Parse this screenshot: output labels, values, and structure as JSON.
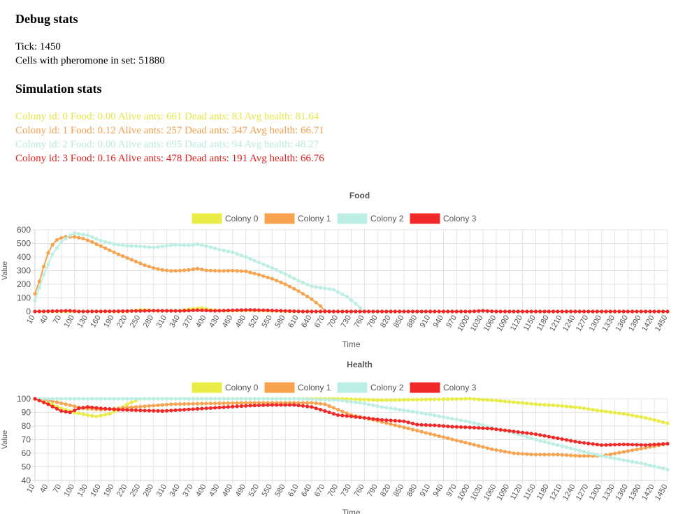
{
  "debug": {
    "heading": "Debug stats",
    "tick_text": "Tick: 1450",
    "pheromone_text": "Cells with pheromone in set: 51880"
  },
  "simulation": {
    "heading": "Simulation stats",
    "colonies": [
      {
        "text": "Colony id: 0 Food: 0.00 Alive ants: 661 Dead ants: 83 Avg health: 81.64",
        "color": "#e6e645"
      },
      {
        "text": "Colony id: 1 Food: 0.12 Alive ants: 257 Dead ants: 347 Avg health: 66.71",
        "color": "#f0a050"
      },
      {
        "text": "Colony id: 2 Food: 0.00 Alive ants: 695 Dead ants: 94 Avg health: 48.27",
        "color": "#bde8e0"
      },
      {
        "text": "Colony id: 3 Food: 0.16 Alive ants: 478 Dead ants: 191 Avg health: 66.76",
        "color": "#e02020"
      }
    ]
  },
  "chart_data": [
    {
      "type": "line",
      "title": "Food",
      "xlabel": "Time",
      "ylabel": "Value",
      "ylim": [
        0,
        600
      ],
      "yticks": [
        0,
        100,
        200,
        300,
        400,
        500,
        600
      ],
      "x_start": 10,
      "x_end": 1450,
      "x_step": 30,
      "series": [
        {
          "name": "Colony 0",
          "color": "#e8ec45",
          "points": [
            [
              10,
              0
            ],
            [
              220,
              0
            ],
            [
              250,
              12
            ],
            [
              300,
              4
            ],
            [
              340,
              6
            ],
            [
              370,
              20
            ],
            [
              390,
              25
            ],
            [
              410,
              12
            ],
            [
              440,
              5
            ],
            [
              500,
              8
            ],
            [
              560,
              4
            ],
            [
              600,
              0
            ],
            [
              1450,
              0
            ]
          ]
        },
        {
          "name": "Colony 1",
          "color": "#f7a24f",
          "points": [
            [
              10,
              130
            ],
            [
              20,
              220
            ],
            [
              30,
              330
            ],
            [
              40,
              430
            ],
            [
              50,
              490
            ],
            [
              60,
              525
            ],
            [
              70,
              540
            ],
            [
              80,
              548
            ],
            [
              100,
              548
            ],
            [
              120,
              535
            ],
            [
              140,
              510
            ],
            [
              160,
              480
            ],
            [
              180,
              450
            ],
            [
              200,
              420
            ],
            [
              230,
              380
            ],
            [
              260,
              340
            ],
            [
              280,
              320
            ],
            [
              300,
              305
            ],
            [
              320,
              298
            ],
            [
              340,
              300
            ],
            [
              360,
              305
            ],
            [
              380,
              315
            ],
            [
              400,
              302
            ],
            [
              430,
              298
            ],
            [
              460,
              300
            ],
            [
              490,
              295
            ],
            [
              520,
              270
            ],
            [
              550,
              240
            ],
            [
              580,
              200
            ],
            [
              610,
              150
            ],
            [
              640,
              90
            ],
            [
              660,
              40
            ],
            [
              670,
              5
            ],
            [
              680,
              0
            ],
            [
              1450,
              0
            ]
          ]
        },
        {
          "name": "Colony 2",
          "color": "#bdeee3",
          "points": [
            [
              10,
              80
            ],
            [
              30,
              270
            ],
            [
              50,
              420
            ],
            [
              70,
              510
            ],
            [
              90,
              560
            ],
            [
              100,
              575
            ],
            [
              130,
              560
            ],
            [
              160,
              520
            ],
            [
              190,
              495
            ],
            [
              220,
              482
            ],
            [
              250,
              478
            ],
            [
              280,
              470
            ],
            [
              300,
              478
            ],
            [
              330,
              490
            ],
            [
              360,
              485
            ],
            [
              380,
              495
            ],
            [
              400,
              480
            ],
            [
              430,
              455
            ],
            [
              460,
              435
            ],
            [
              490,
              400
            ],
            [
              520,
              360
            ],
            [
              550,
              320
            ],
            [
              580,
              275
            ],
            [
              610,
              225
            ],
            [
              640,
              185
            ],
            [
              660,
              175
            ],
            [
              690,
              160
            ],
            [
              720,
              110
            ],
            [
              750,
              30
            ],
            [
              760,
              0
            ],
            [
              1450,
              0
            ]
          ]
        },
        {
          "name": "Colony 3",
          "color": "#f02828",
          "points": [
            [
              10,
              0
            ],
            [
              90,
              5
            ],
            [
              110,
              0
            ],
            [
              200,
              2
            ],
            [
              280,
              6
            ],
            [
              340,
              4
            ],
            [
              380,
              10
            ],
            [
              420,
              5
            ],
            [
              500,
              12
            ],
            [
              540,
              8
            ],
            [
              580,
              4
            ],
            [
              620,
              0
            ],
            [
              1000,
              0
            ],
            [
              1030,
              5
            ],
            [
              1060,
              0
            ],
            [
              1450,
              0
            ]
          ]
        }
      ]
    },
    {
      "type": "line",
      "title": "Health",
      "xlabel": "Time",
      "ylabel": "Value",
      "ylim": [
        40,
        100
      ],
      "yticks": [
        40,
        50,
        60,
        70,
        80,
        90,
        100
      ],
      "x_start": 10,
      "x_end": 1450,
      "x_step": 30,
      "series": [
        {
          "name": "Colony 0",
          "color": "#e8ec45",
          "points": [
            [
              10,
              100
            ],
            [
              40,
              97
            ],
            [
              70,
              93
            ],
            [
              100,
              90
            ],
            [
              130,
              88
            ],
            [
              150,
              87
            ],
            [
              180,
              89
            ],
            [
              200,
              92
            ],
            [
              220,
              96
            ],
            [
              250,
              100
            ],
            [
              700,
              100
            ],
            [
              800,
              99
            ],
            [
              900,
              99.5
            ],
            [
              1000,
              100
            ],
            [
              1050,
              99
            ],
            [
              1100,
              97.5
            ],
            [
              1150,
              96
            ],
            [
              1200,
              95
            ],
            [
              1250,
              93.5
            ],
            [
              1300,
              91
            ],
            [
              1350,
              89
            ],
            [
              1400,
              86
            ],
            [
              1450,
              82
            ]
          ]
        },
        {
          "name": "Colony 1",
          "color": "#f7a24f",
          "points": [
            [
              10,
              100
            ],
            [
              40,
              99
            ],
            [
              80,
              96
            ],
            [
              120,
              93
            ],
            [
              160,
              92
            ],
            [
              200,
              93
            ],
            [
              240,
              94
            ],
            [
              280,
              95
            ],
            [
              320,
              96
            ],
            [
              400,
              96.5
            ],
            [
              500,
              97
            ],
            [
              600,
              97
            ],
            [
              640,
              97
            ],
            [
              670,
              96
            ],
            [
              700,
              92
            ],
            [
              730,
              88
            ],
            [
              760,
              86
            ],
            [
              800,
              83
            ],
            [
              850,
              79
            ],
            [
              900,
              75
            ],
            [
              950,
              71
            ],
            [
              1000,
              67
            ],
            [
              1050,
              63
            ],
            [
              1100,
              60
            ],
            [
              1150,
              59
            ],
            [
              1200,
              59
            ],
            [
              1250,
              58
            ],
            [
              1300,
              58
            ],
            [
              1350,
              61
            ],
            [
              1400,
              64
            ],
            [
              1450,
              67
            ]
          ]
        },
        {
          "name": "Colony 2",
          "color": "#bdeee3",
          "points": [
            [
              10,
              100
            ],
            [
              200,
              100
            ],
            [
              400,
              100
            ],
            [
              600,
              100
            ],
            [
              700,
              99
            ],
            [
              750,
              97
            ],
            [
              800,
              94
            ],
            [
              900,
              89
            ],
            [
              1000,
              83
            ],
            [
              1050,
              79
            ],
            [
              1100,
              75
            ],
            [
              1150,
              70
            ],
            [
              1200,
              66
            ],
            [
              1250,
              62
            ],
            [
              1300,
              58
            ],
            [
              1350,
              55
            ],
            [
              1400,
              52
            ],
            [
              1450,
              48
            ]
          ]
        },
        {
          "name": "Colony 3",
          "color": "#f02828",
          "points": [
            [
              10,
              100
            ],
            [
              40,
              96
            ],
            [
              70,
              91
            ],
            [
              90,
              90
            ],
            [
              110,
              93
            ],
            [
              130,
              94
            ],
            [
              160,
              93
            ],
            [
              200,
              92
            ],
            [
              250,
              91.5
            ],
            [
              300,
              91
            ],
            [
              350,
              92
            ],
            [
              400,
              93
            ],
            [
              450,
              94
            ],
            [
              500,
              95
            ],
            [
              550,
              95.5
            ],
            [
              600,
              95.5
            ],
            [
              640,
              94
            ],
            [
              670,
              91
            ],
            [
              700,
              88
            ],
            [
              730,
              87
            ],
            [
              760,
              86
            ],
            [
              800,
              84.5
            ],
            [
              850,
              83.5
            ],
            [
              880,
              81
            ],
            [
              920,
              80.5
            ],
            [
              960,
              79.5
            ],
            [
              1000,
              79
            ],
            [
              1050,
              78
            ],
            [
              1100,
              76
            ],
            [
              1150,
              74
            ],
            [
              1200,
              71
            ],
            [
              1250,
              68
            ],
            [
              1300,
              66
            ],
            [
              1350,
              66.5
            ],
            [
              1400,
              66
            ],
            [
              1450,
              67
            ]
          ]
        }
      ]
    }
  ]
}
